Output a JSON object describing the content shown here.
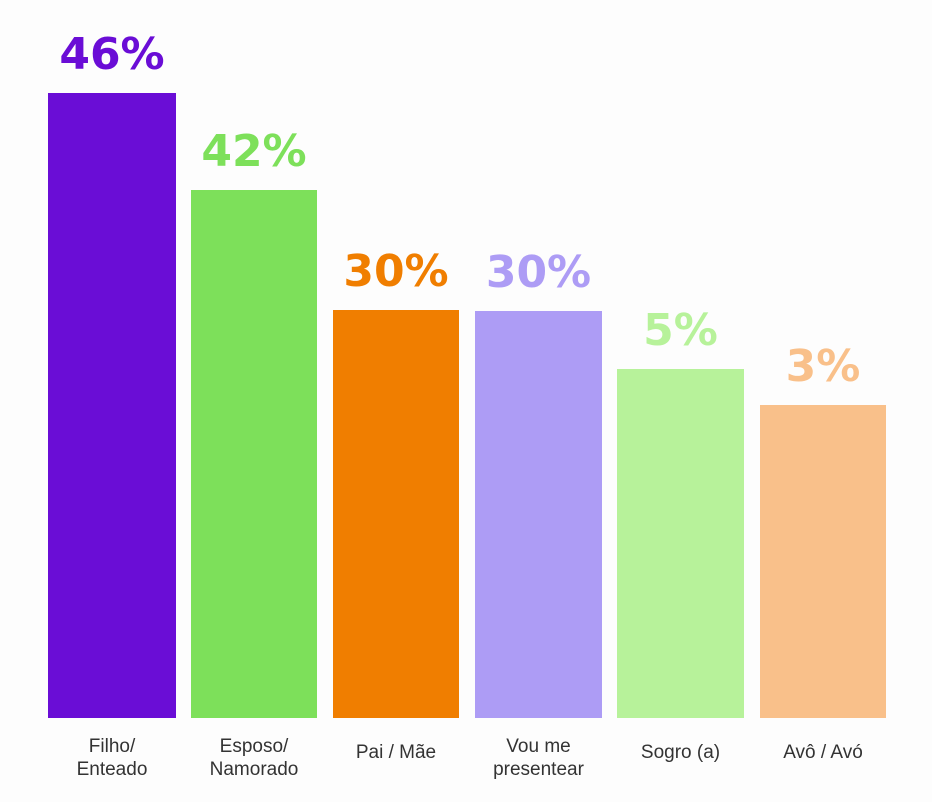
{
  "chart_data": {
    "type": "bar",
    "categories": [
      [
        "Filho/",
        "Enteado"
      ],
      [
        "Esposo/",
        "Namorado"
      ],
      [
        "Pai / Mãe"
      ],
      [
        "Vou me",
        "presentear"
      ],
      [
        "Sogro (a)"
      ],
      [
        "Avô / Avó"
      ]
    ],
    "values": [
      46,
      42,
      30,
      30,
      5,
      3
    ],
    "value_labels": [
      "46%",
      "42%",
      "30%",
      "30%",
      "5%",
      "3%"
    ],
    "colors": [
      "#6a0dd6",
      "#7de05a",
      "#f07e00",
      "#ad9cf5",
      "#b7f29a",
      "#f9c08a"
    ],
    "ylim": [
      0,
      50
    ],
    "grid": false,
    "legend": "none"
  }
}
